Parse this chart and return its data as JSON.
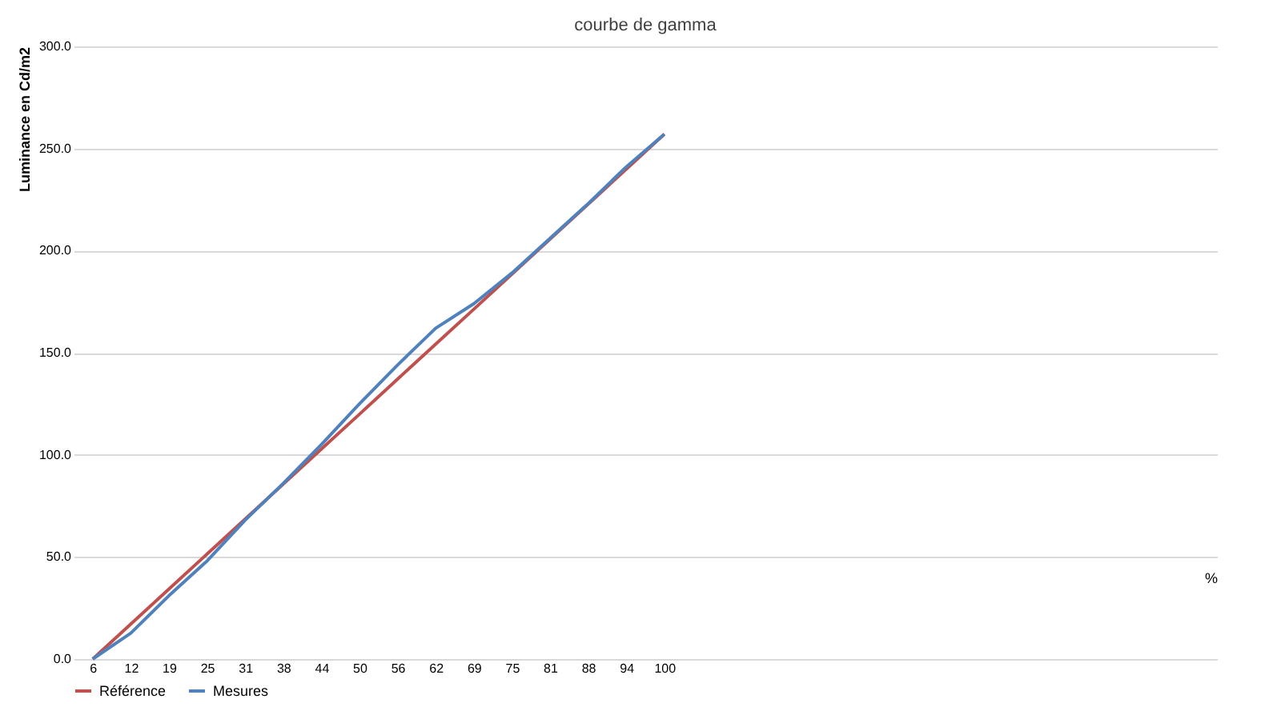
{
  "chart_data": {
    "type": "line",
    "title": "courbe de gamma",
    "ylabel": "Luminance en Cd/m2",
    "xlabel": "%",
    "categories": [
      "6",
      "12",
      "19",
      "25",
      "31",
      "38",
      "44",
      "50",
      "56",
      "62",
      "69",
      "75",
      "81",
      "88",
      "94",
      "100",
      null,
      null,
      null,
      null,
      null,
      null,
      null,
      null,
      null,
      null,
      null,
      null,
      null,
      null
    ],
    "series": [
      {
        "name": "Référence",
        "color": "#c0504d",
        "values": [
          0,
          17.1,
          34.3,
          51.4,
          68.5,
          85.7,
          102.8,
          119.9,
          137.1,
          154.2,
          171.3,
          188.5,
          205.6,
          222.7,
          239.9,
          257,
          null,
          null,
          null,
          null,
          null,
          null,
          null,
          null,
          null,
          null,
          null,
          null,
          null,
          null
        ]
      },
      {
        "name": "Mesures",
        "color": "#4f81bd",
        "values": [
          0,
          12.7,
          31,
          48,
          68,
          86,
          105,
          125,
          144,
          162,
          174,
          189,
          206,
          223,
          241,
          257,
          null,
          null,
          null,
          null,
          null,
          null,
          null,
          null,
          null,
          null,
          null,
          null,
          null,
          null
        ]
      }
    ],
    "ylim": [
      0,
      300
    ],
    "yticks": [
      {
        "value": 0,
        "label": "0.0"
      },
      {
        "value": 50,
        "label": "50.0"
      },
      {
        "value": 100,
        "label": "100.0"
      },
      {
        "value": 150,
        "label": "150.0"
      },
      {
        "value": 200,
        "label": "200.0"
      },
      {
        "value": 250,
        "label": "250.0"
      },
      {
        "value": 300,
        "label": "300.0"
      }
    ],
    "grid": "y",
    "legend": "bottom",
    "line_style": "solid",
    "marker": "none"
  }
}
